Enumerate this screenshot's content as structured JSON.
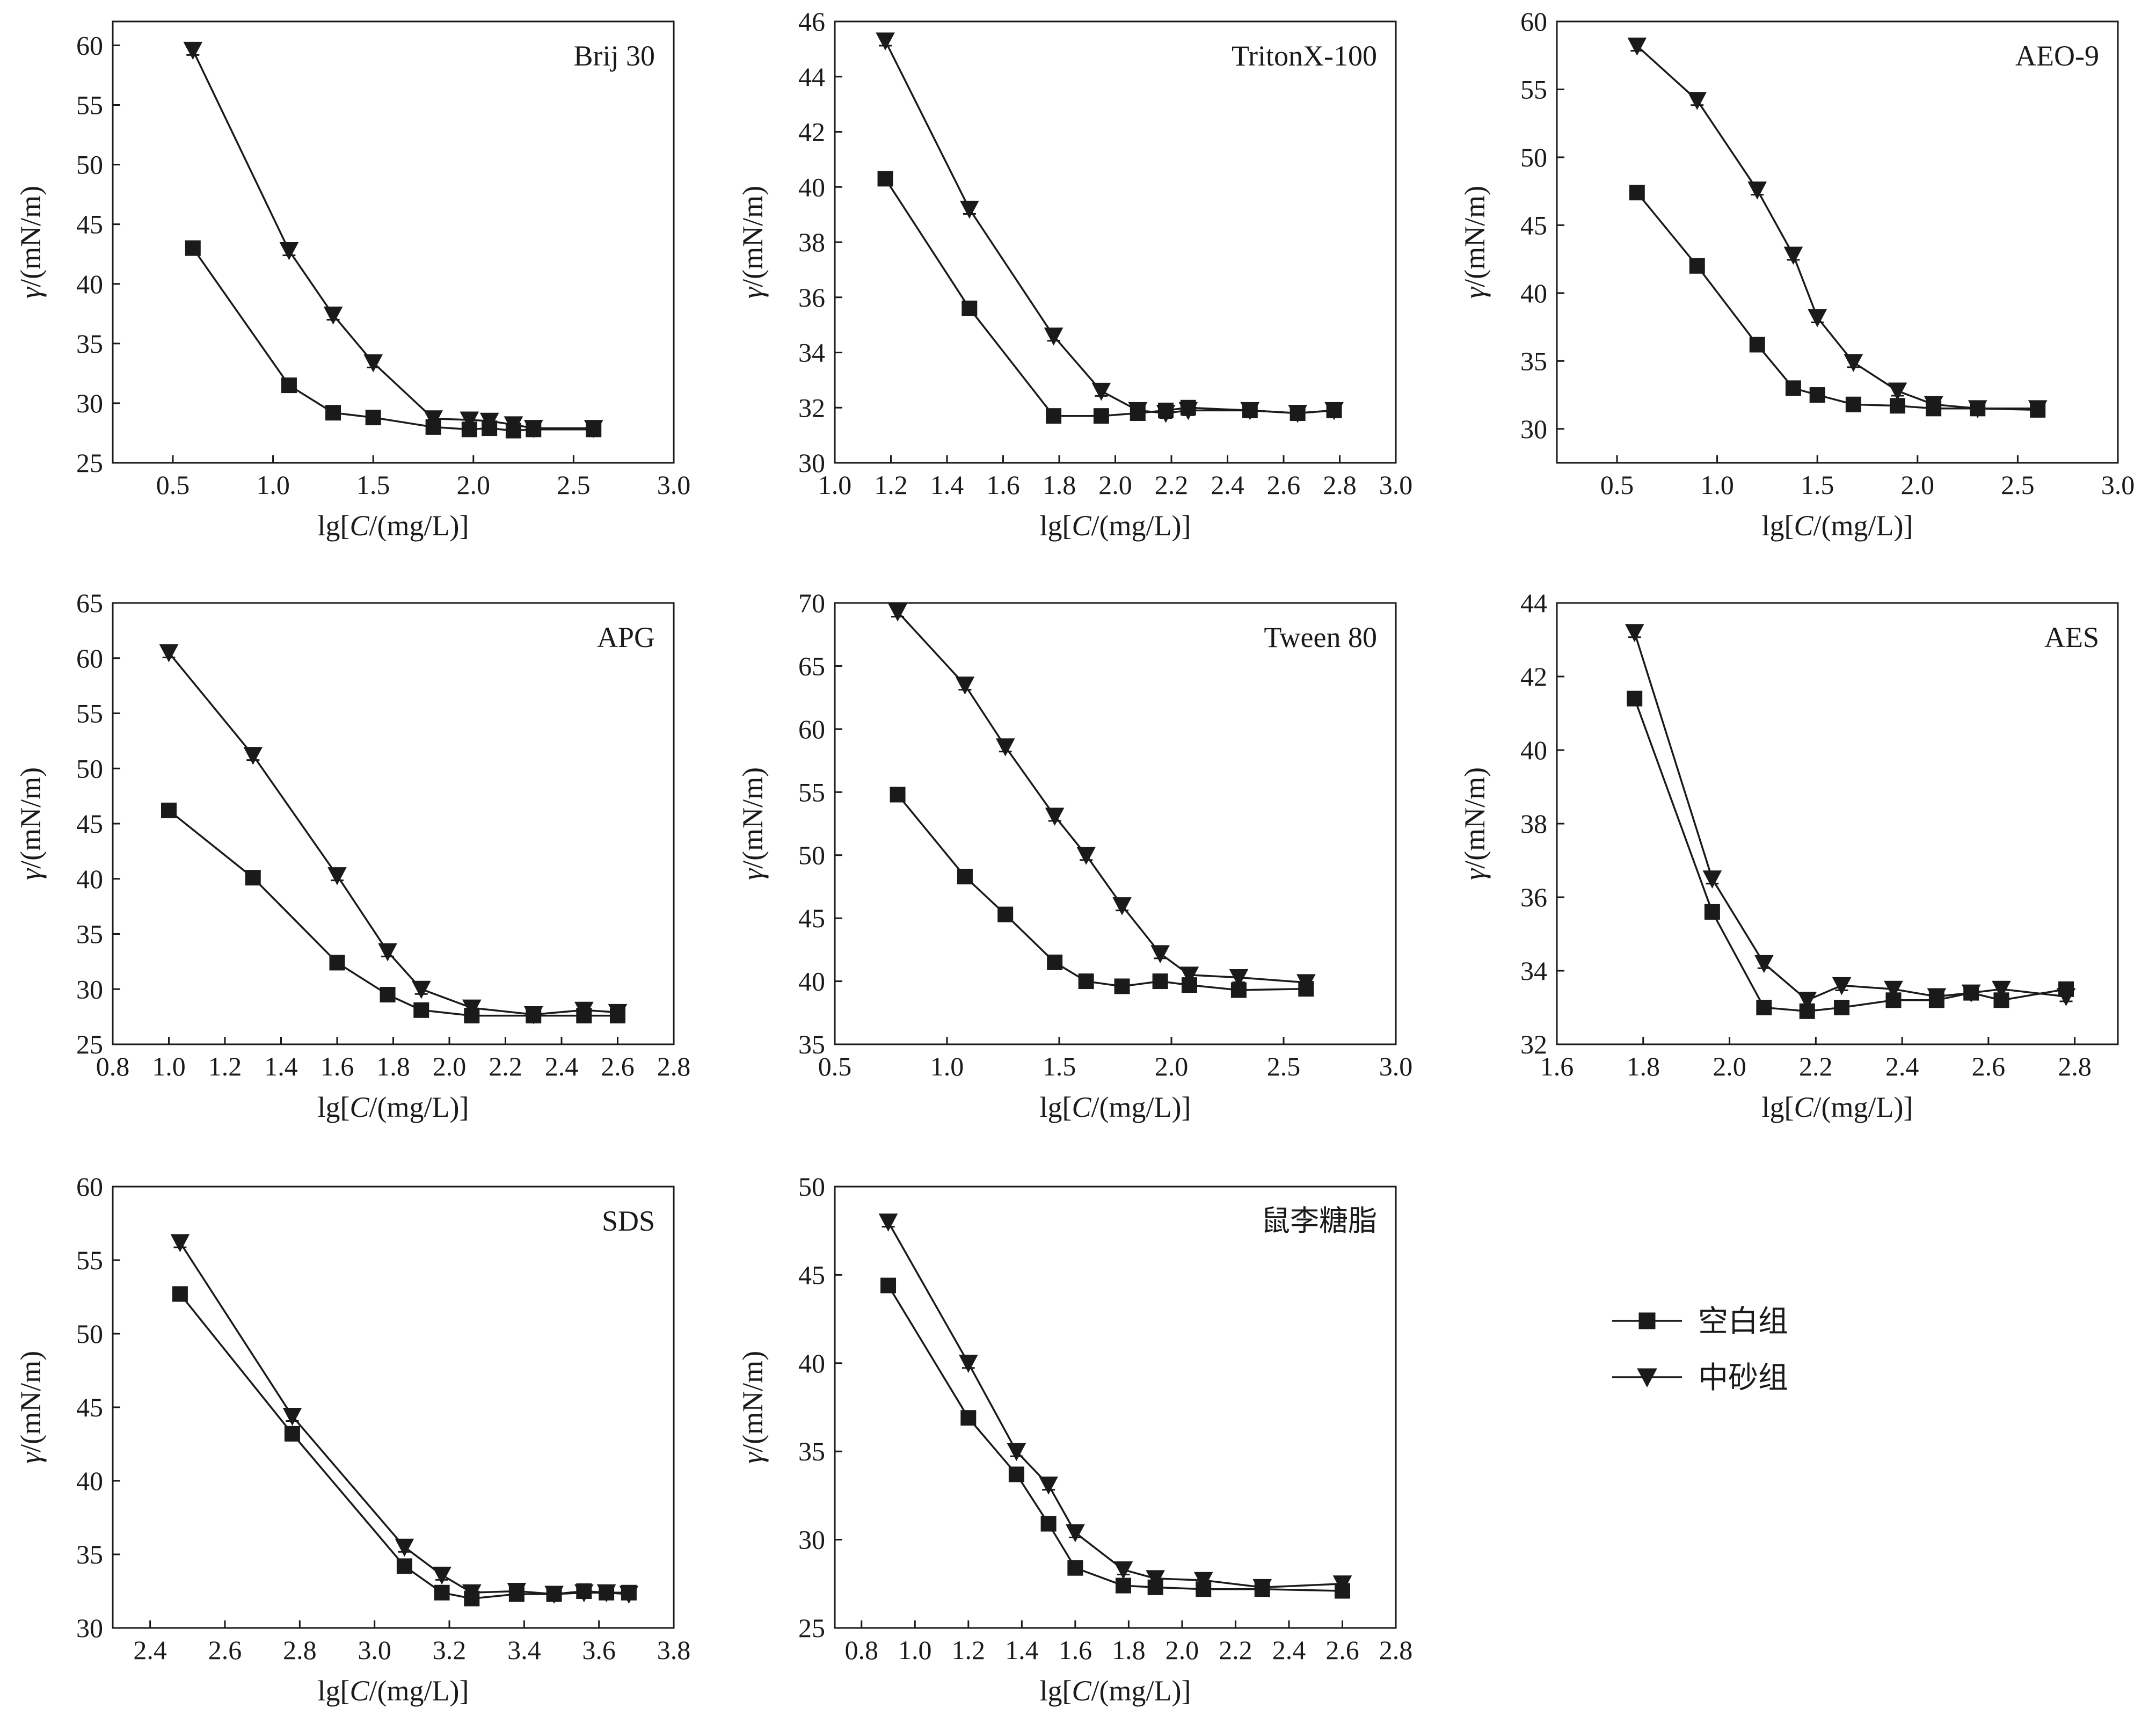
{
  "legend": {
    "items": [
      {
        "label": "空白组",
        "marker": "square"
      },
      {
        "label": "中砂组",
        "marker": "triangle-down"
      }
    ]
  },
  "chart_data": [
    {
      "type": "line",
      "title": "Brij 30",
      "xlabel": "lg[C/(mg/L)]",
      "ylabel": "γ/(mN/m)",
      "xlim": [
        0.2,
        3.0
      ],
      "ylim": [
        25,
        62
      ],
      "xticks": [
        "0.5",
        "1.0",
        "1.5",
        "2.0",
        "2.5",
        "3.0"
      ],
      "yticks": [
        "25",
        "30",
        "35",
        "40",
        "45",
        "50",
        "55",
        "60"
      ],
      "series": [
        {
          "name": "空白组",
          "x": [
            0.6,
            1.08,
            1.3,
            1.5,
            1.8,
            1.98,
            2.08,
            2.2,
            2.3,
            2.6
          ],
          "y": [
            43.0,
            31.5,
            29.2,
            28.8,
            28.0,
            27.8,
            27.9,
            27.7,
            27.8,
            27.8
          ]
        },
        {
          "name": "中砂组",
          "x": [
            0.6,
            1.08,
            1.3,
            1.5,
            1.8,
            1.98,
            2.08,
            2.2,
            2.3,
            2.6
          ],
          "y": [
            59.6,
            42.8,
            37.4,
            33.4,
            28.7,
            28.6,
            28.5,
            28.2,
            27.9,
            27.9
          ]
        }
      ]
    },
    {
      "type": "line",
      "title": "TritonX-100",
      "xlabel": "lg[C/(mg/L)]",
      "ylabel": "γ/(mN/m)",
      "xlim": [
        1.0,
        3.0
      ],
      "ylim": [
        30,
        46
      ],
      "xticks": [
        "1.0",
        "1.2",
        "1.4",
        "1.6",
        "1.8",
        "2.0",
        "2.2",
        "2.4",
        "2.6",
        "2.8",
        "3.0"
      ],
      "yticks": [
        "30",
        "32",
        "34",
        "36",
        "38",
        "40",
        "42",
        "44",
        "46"
      ],
      "series": [
        {
          "name": "空白组",
          "x": [
            1.18,
            1.48,
            1.78,
            1.95,
            2.08,
            2.18,
            2.26,
            2.48,
            2.65,
            2.78
          ],
          "y": [
            40.3,
            35.6,
            31.7,
            31.7,
            31.8,
            31.9,
            32.0,
            31.9,
            31.8,
            31.9
          ]
        },
        {
          "name": "中砂组",
          "x": [
            1.18,
            1.48,
            1.78,
            1.95,
            2.08,
            2.18,
            2.26,
            2.48,
            2.65,
            2.78
          ],
          "y": [
            45.3,
            39.2,
            34.6,
            32.6,
            31.9,
            31.8,
            31.9,
            31.9,
            31.8,
            31.9
          ]
        }
      ]
    },
    {
      "type": "line",
      "title": "AEO-9",
      "xlabel": "lg[C/(mg/L)]",
      "ylabel": "γ/(mN/m)",
      "xlim": [
        0.2,
        3.0
      ],
      "ylim": [
        27.5,
        60
      ],
      "xticks": [
        "0.5",
        "1.0",
        "1.5",
        "2.0",
        "2.5",
        "3.0"
      ],
      "yticks": [
        "30",
        "35",
        "40",
        "45",
        "50",
        "55",
        "60"
      ],
      "series": [
        {
          "name": "空白组",
          "x": [
            0.6,
            0.9,
            1.2,
            1.38,
            1.5,
            1.68,
            1.9,
            2.08,
            2.3,
            2.6
          ],
          "y": [
            47.4,
            42.0,
            36.2,
            33.0,
            32.5,
            31.8,
            31.7,
            31.5,
            31.5,
            31.4
          ]
        },
        {
          "name": "中砂组",
          "x": [
            0.6,
            0.9,
            1.2,
            1.38,
            1.5,
            1.68,
            1.9,
            2.08,
            2.3,
            2.6
          ],
          "y": [
            58.2,
            54.2,
            47.6,
            42.8,
            38.2,
            34.9,
            32.8,
            31.8,
            31.5,
            31.5
          ]
        }
      ]
    },
    {
      "type": "line",
      "title": "APG",
      "xlabel": "lg[C/(mg/L)]",
      "ylabel": "γ/(mN/m)",
      "xlim": [
        0.8,
        2.8
      ],
      "ylim": [
        25,
        65
      ],
      "xticks": [
        "0.8",
        "1.0",
        "1.2",
        "1.4",
        "1.6",
        "1.8",
        "2.0",
        "2.2",
        "2.4",
        "2.6",
        "2.8"
      ],
      "yticks": [
        "25",
        "30",
        "35",
        "40",
        "45",
        "50",
        "55",
        "60",
        "65"
      ],
      "series": [
        {
          "name": "空白组",
          "x": [
            1.0,
            1.3,
            1.6,
            1.78,
            1.9,
            2.08,
            2.3,
            2.48,
            2.6
          ],
          "y": [
            46.2,
            40.1,
            32.4,
            29.5,
            28.1,
            27.6,
            27.6,
            27.6,
            27.6
          ]
        },
        {
          "name": "中砂组",
          "x": [
            1.0,
            1.3,
            1.6,
            1.78,
            1.9,
            2.08,
            2.3,
            2.48,
            2.6
          ],
          "y": [
            60.5,
            51.2,
            40.3,
            33.4,
            30.0,
            28.3,
            27.7,
            28.1,
            27.9
          ]
        }
      ]
    },
    {
      "type": "line",
      "title": "Tween 80",
      "xlabel": "lg[C/(mg/L)]",
      "ylabel": "γ/(mN/m)",
      "xlim": [
        0.5,
        3.0
      ],
      "ylim": [
        35,
        70
      ],
      "xticks": [
        "0.5",
        "1.0",
        "1.5",
        "2.0",
        "2.5",
        "3.0"
      ],
      "yticks": [
        "35",
        "40",
        "45",
        "50",
        "55",
        "60",
        "65",
        "70"
      ],
      "series": [
        {
          "name": "空白组",
          "x": [
            0.78,
            1.08,
            1.26,
            1.48,
            1.62,
            1.78,
            1.95,
            2.08,
            2.3,
            2.6
          ],
          "y": [
            54.8,
            48.3,
            45.3,
            41.5,
            40.0,
            39.6,
            40.0,
            39.7,
            39.3,
            39.4
          ]
        },
        {
          "name": "中砂组",
          "x": [
            0.78,
            1.08,
            1.26,
            1.48,
            1.62,
            1.78,
            1.95,
            2.08,
            2.3,
            2.6
          ],
          "y": [
            69.3,
            63.5,
            58.6,
            53.1,
            50.0,
            46.0,
            42.2,
            40.5,
            40.3,
            39.9
          ]
        }
      ]
    },
    {
      "type": "line",
      "title": "AES",
      "xlabel": "lg[C/(mg/L)]",
      "ylabel": "γ/(mN/m)",
      "xlim": [
        1.6,
        2.9
      ],
      "ylim": [
        32,
        44
      ],
      "xticks": [
        "1.6",
        "1.8",
        "2.0",
        "2.2",
        "2.4",
        "2.6",
        "2.8"
      ],
      "yticks": [
        "32",
        "34",
        "36",
        "38",
        "40",
        "42",
        "44"
      ],
      "series": [
        {
          "name": "空白组",
          "x": [
            1.78,
            1.96,
            2.08,
            2.18,
            2.26,
            2.38,
            2.48,
            2.56,
            2.63,
            2.78
          ],
          "y": [
            41.4,
            35.6,
            33.0,
            32.9,
            33.0,
            33.2,
            33.2,
            33.4,
            33.2,
            33.5
          ]
        },
        {
          "name": "中砂组",
          "x": [
            1.78,
            1.96,
            2.08,
            2.18,
            2.26,
            2.38,
            2.48,
            2.56,
            2.63,
            2.78
          ],
          "y": [
            43.2,
            36.5,
            34.2,
            33.2,
            33.6,
            33.5,
            33.3,
            33.4,
            33.5,
            33.3
          ]
        }
      ]
    },
    {
      "type": "line",
      "title": "SDS",
      "xlabel": "lg[C/(mg/L)]",
      "ylabel": "γ/(mN/m)",
      "xlim": [
        2.3,
        3.8
      ],
      "ylim": [
        30,
        60
      ],
      "xticks": [
        "2.4",
        "2.6",
        "2.8",
        "3.0",
        "3.2",
        "3.4",
        "3.6",
        "3.8"
      ],
      "yticks": [
        "30",
        "35",
        "40",
        "45",
        "50",
        "55",
        "60"
      ],
      "series": [
        {
          "name": "空白组",
          "x": [
            2.48,
            2.78,
            3.08,
            3.18,
            3.26,
            3.38,
            3.48,
            3.56,
            3.62,
            3.68
          ],
          "y": [
            52.7,
            43.2,
            34.2,
            32.4,
            32.0,
            32.3,
            32.3,
            32.5,
            32.4,
            32.4
          ]
        },
        {
          "name": "中砂组",
          "x": [
            2.48,
            2.78,
            3.08,
            3.18,
            3.26,
            3.38,
            3.48,
            3.56,
            3.62,
            3.68
          ],
          "y": [
            56.2,
            44.4,
            35.5,
            33.6,
            32.4,
            32.5,
            32.3,
            32.4,
            32.4,
            32.3
          ]
        }
      ]
    },
    {
      "type": "line",
      "title": "鼠李糖脂",
      "xlabel": "lg[C/(mg/L)]",
      "ylabel": "γ/(mN/m)",
      "xlim": [
        0.7,
        2.8
      ],
      "ylim": [
        25,
        50
      ],
      "xticks": [
        "0.8",
        "1.0",
        "1.2",
        "1.4",
        "1.6",
        "1.8",
        "2.0",
        "2.2",
        "2.4",
        "2.6",
        "2.8"
      ],
      "yticks": [
        "25",
        "30",
        "35",
        "40",
        "45",
        "50"
      ],
      "series": [
        {
          "name": "空白组",
          "x": [
            0.9,
            1.2,
            1.38,
            1.5,
            1.6,
            1.78,
            1.9,
            2.08,
            2.3,
            2.6
          ],
          "y": [
            44.4,
            36.9,
            33.7,
            30.9,
            28.4,
            27.4,
            27.3,
            27.2,
            27.2,
            27.1
          ]
        },
        {
          "name": "中砂组",
          "x": [
            0.9,
            1.2,
            1.38,
            1.5,
            1.6,
            1.78,
            1.9,
            2.08,
            2.3,
            2.6
          ],
          "y": [
            48.0,
            40.0,
            35.0,
            33.1,
            30.4,
            28.3,
            27.8,
            27.7,
            27.3,
            27.5
          ]
        }
      ]
    }
  ]
}
